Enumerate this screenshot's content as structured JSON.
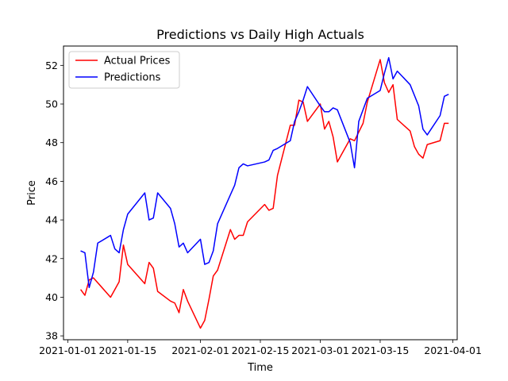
{
  "chart_data": {
    "type": "line",
    "title": "Predictions vs Daily High Actuals",
    "xlabel": "Time",
    "ylabel": "Price",
    "xlim": [
      "2020-12-31",
      "2021-04-02"
    ],
    "ylim": [
      37.8,
      53.0
    ],
    "x_ticks": [
      "2021-01-01",
      "2021-01-15",
      "2021-02-01",
      "2021-02-15",
      "2021-03-01",
      "2021-03-15",
      "2021-04-01"
    ],
    "y_ticks": [
      38,
      40,
      42,
      44,
      46,
      48,
      50,
      52
    ],
    "grid": false,
    "legend_position": "top-left",
    "series": [
      {
        "name": "Actual Prices",
        "color": "#ff0000",
        "points": [
          [
            "2021-01-04",
            40.4
          ],
          [
            "2021-01-05",
            40.1
          ],
          [
            "2021-01-06",
            40.9
          ],
          [
            "2021-01-07",
            41.0
          ],
          [
            "2021-01-11",
            40.0
          ],
          [
            "2021-01-13",
            40.8
          ],
          [
            "2021-01-14",
            42.7
          ],
          [
            "2021-01-15",
            41.7
          ],
          [
            "2021-01-19",
            40.7
          ],
          [
            "2021-01-20",
            41.8
          ],
          [
            "2021-01-21",
            41.5
          ],
          [
            "2021-01-22",
            40.3
          ],
          [
            "2021-01-25",
            39.8
          ],
          [
            "2021-01-26",
            39.7
          ],
          [
            "2021-01-27",
            39.2
          ],
          [
            "2021-01-28",
            40.4
          ],
          [
            "2021-01-29",
            39.8
          ],
          [
            "2021-02-01",
            38.4
          ],
          [
            "2021-02-02",
            38.8
          ],
          [
            "2021-02-03",
            39.9
          ],
          [
            "2021-02-04",
            41.1
          ],
          [
            "2021-02-05",
            41.4
          ],
          [
            "2021-02-08",
            43.5
          ],
          [
            "2021-02-09",
            43.0
          ],
          [
            "2021-02-10",
            43.2
          ],
          [
            "2021-02-11",
            43.2
          ],
          [
            "2021-02-12",
            43.9
          ],
          [
            "2021-02-16",
            44.8
          ],
          [
            "2021-02-17",
            44.5
          ],
          [
            "2021-02-18",
            44.6
          ],
          [
            "2021-02-19",
            46.3
          ],
          [
            "2021-02-22",
            48.9
          ],
          [
            "2021-02-23",
            48.9
          ],
          [
            "2021-02-24",
            50.2
          ],
          [
            "2021-02-25",
            50.1
          ],
          [
            "2021-02-26",
            49.1
          ],
          [
            "2021-03-01",
            50.0
          ],
          [
            "2021-03-02",
            48.7
          ],
          [
            "2021-03-03",
            49.1
          ],
          [
            "2021-03-04",
            48.3
          ],
          [
            "2021-03-05",
            47.0
          ],
          [
            "2021-03-08",
            48.2
          ],
          [
            "2021-03-09",
            48.1
          ],
          [
            "2021-03-11",
            49.0
          ],
          [
            "2021-03-12",
            50.1
          ],
          [
            "2021-03-15",
            52.3
          ],
          [
            "2021-03-16",
            51.1
          ],
          [
            "2021-03-17",
            50.6
          ],
          [
            "2021-03-18",
            51.0
          ],
          [
            "2021-03-19",
            49.2
          ],
          [
            "2021-03-22",
            48.6
          ],
          [
            "2021-03-23",
            47.8
          ],
          [
            "2021-03-24",
            47.4
          ],
          [
            "2021-03-25",
            47.2
          ],
          [
            "2021-03-26",
            47.9
          ],
          [
            "2021-03-29",
            48.1
          ],
          [
            "2021-03-30",
            49.0
          ],
          [
            "2021-03-31",
            49.0
          ]
        ]
      },
      {
        "name": "Predictions",
        "color": "#0000ff",
        "points": [
          [
            "2021-01-04",
            42.4
          ],
          [
            "2021-01-05",
            42.3
          ],
          [
            "2021-01-06",
            40.5
          ],
          [
            "2021-01-07",
            41.3
          ],
          [
            "2021-01-08",
            42.8
          ],
          [
            "2021-01-11",
            43.2
          ],
          [
            "2021-01-12",
            42.5
          ],
          [
            "2021-01-13",
            42.3
          ],
          [
            "2021-01-14",
            43.5
          ],
          [
            "2021-01-15",
            44.3
          ],
          [
            "2021-01-19",
            45.4
          ],
          [
            "2021-01-20",
            44.0
          ],
          [
            "2021-01-21",
            44.1
          ],
          [
            "2021-01-22",
            45.4
          ],
          [
            "2021-01-25",
            44.6
          ],
          [
            "2021-01-26",
            43.8
          ],
          [
            "2021-01-27",
            42.6
          ],
          [
            "2021-01-28",
            42.8
          ],
          [
            "2021-01-29",
            42.3
          ],
          [
            "2021-02-01",
            43.0
          ],
          [
            "2021-02-02",
            41.7
          ],
          [
            "2021-02-03",
            41.8
          ],
          [
            "2021-02-04",
            42.4
          ],
          [
            "2021-02-05",
            43.8
          ],
          [
            "2021-02-08",
            45.3
          ],
          [
            "2021-02-09",
            45.8
          ],
          [
            "2021-02-10",
            46.7
          ],
          [
            "2021-02-11",
            46.9
          ],
          [
            "2021-02-12",
            46.8
          ],
          [
            "2021-02-16",
            47.0
          ],
          [
            "2021-02-17",
            47.1
          ],
          [
            "2021-02-18",
            47.6
          ],
          [
            "2021-02-19",
            47.7
          ],
          [
            "2021-02-22",
            48.1
          ],
          [
            "2021-02-23",
            49.1
          ],
          [
            "2021-02-24",
            49.6
          ],
          [
            "2021-02-25",
            50.2
          ],
          [
            "2021-02-26",
            50.9
          ],
          [
            "2021-03-01",
            49.9
          ],
          [
            "2021-03-02",
            49.6
          ],
          [
            "2021-03-03",
            49.6
          ],
          [
            "2021-03-04",
            49.8
          ],
          [
            "2021-03-05",
            49.7
          ],
          [
            "2021-03-08",
            48.0
          ],
          [
            "2021-03-09",
            46.7
          ],
          [
            "2021-03-10",
            49.1
          ],
          [
            "2021-03-12",
            50.3
          ],
          [
            "2021-03-15",
            50.7
          ],
          [
            "2021-03-16",
            51.6
          ],
          [
            "2021-03-17",
            52.4
          ],
          [
            "2021-03-18",
            51.3
          ],
          [
            "2021-03-19",
            51.7
          ],
          [
            "2021-03-22",
            51.0
          ],
          [
            "2021-03-24",
            49.9
          ],
          [
            "2021-03-25",
            48.7
          ],
          [
            "2021-03-26",
            48.4
          ],
          [
            "2021-03-29",
            49.4
          ],
          [
            "2021-03-30",
            50.4
          ],
          [
            "2021-03-31",
            50.5
          ]
        ]
      }
    ]
  }
}
